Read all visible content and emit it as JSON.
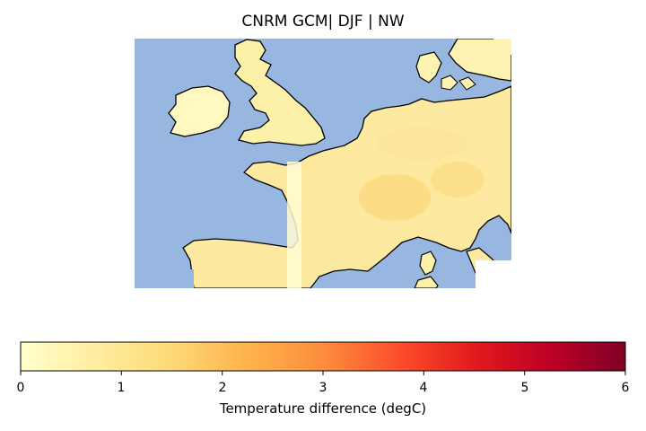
{
  "title": "CNRM GCM| DJF | NW",
  "colorbar": {
    "label": "Temperature difference (degC)",
    "ticks": [
      "0",
      "1",
      "2",
      "3",
      "4",
      "5",
      "6"
    ],
    "range": [
      0,
      6
    ],
    "colormap": "YlOrRd"
  },
  "colors": {
    "ocean": "#97b6e0",
    "land_low": "#fffccc",
    "land_mid": "#fdeaa0",
    "land_high": "#fcdc85",
    "coast": "#000000"
  }
}
